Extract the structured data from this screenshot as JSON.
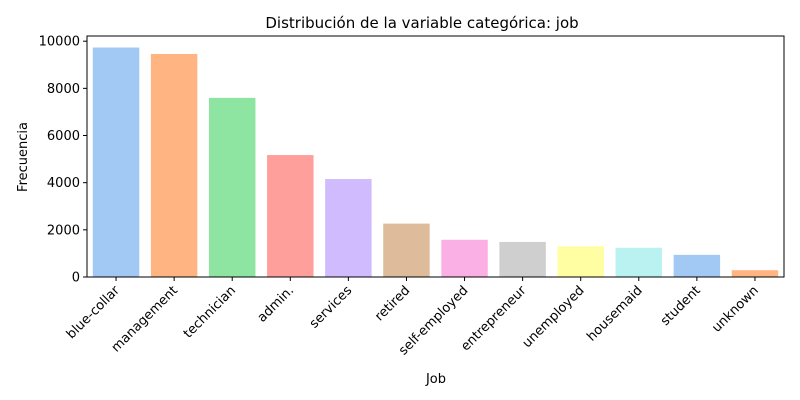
{
  "chart_data": {
    "type": "bar",
    "title": "Distribución de la variable categórica: job",
    "xlabel": "Job",
    "ylabel": "Frecuencia",
    "categories": [
      "blue-collar",
      "management",
      "technician",
      "admin.",
      "services",
      "retired",
      "self-employed",
      "entrepreneur",
      "unemployed",
      "housemaid",
      "student",
      "unknown"
    ],
    "values": [
      9732,
      9458,
      7597,
      5171,
      4154,
      2264,
      1579,
      1487,
      1303,
      1240,
      938,
      288
    ],
    "colors": [
      "#a1c9f4",
      "#ffb482",
      "#8de5a1",
      "#ff9f9b",
      "#d0bbff",
      "#debb9b",
      "#fab0e4",
      "#cfcfcf",
      "#fffea3",
      "#b9f2f0",
      "#a1c9f4",
      "#ffb482"
    ],
    "ylim": [
      0,
      10220
    ],
    "yticks": [
      0,
      2000,
      4000,
      6000,
      8000,
      10000
    ],
    "grid": false,
    "legend": "none"
  }
}
